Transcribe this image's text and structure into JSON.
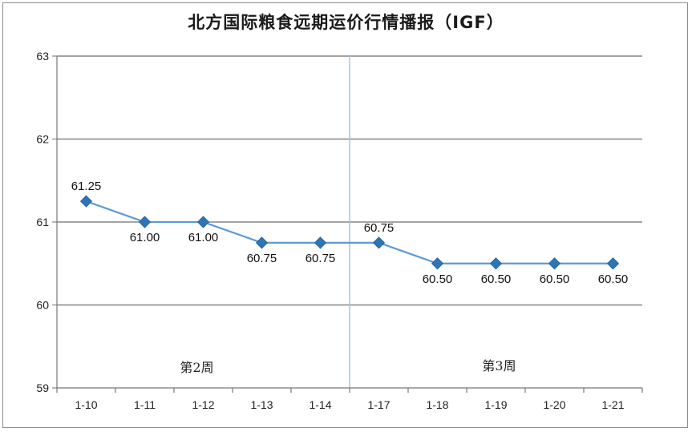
{
  "chart_data": {
    "type": "line",
    "title": "北方国际粮食远期运价行情播报（IGF）",
    "categories": [
      "1-10",
      "1-11",
      "1-12",
      "1-13",
      "1-14",
      "1-17",
      "1-18",
      "1-19",
      "1-20",
      "1-21"
    ],
    "series": [
      {
        "values": [
          61.25,
          61.0,
          61.0,
          60.75,
          60.75,
          60.75,
          60.5,
          60.5,
          60.5,
          60.5
        ]
      }
    ],
    "data_labels": [
      "61.25",
      "61.00",
      "61.00",
      "60.75",
      "60.75",
      "60.75",
      "60.50",
      "60.50",
      "60.50",
      "60.50"
    ],
    "ylim": [
      59,
      63
    ],
    "yticks": [
      "59",
      "60",
      "61",
      "62",
      "63"
    ],
    "grid": true,
    "week_divider_after_category": "1-14",
    "week_labels": [
      "第2周",
      "第3周"
    ],
    "colors": {
      "line": "#5b9bd5",
      "marker": "#2e75b6",
      "grid": "#868686",
      "divider": "#9dc3e6"
    },
    "marker": "diamond"
  }
}
